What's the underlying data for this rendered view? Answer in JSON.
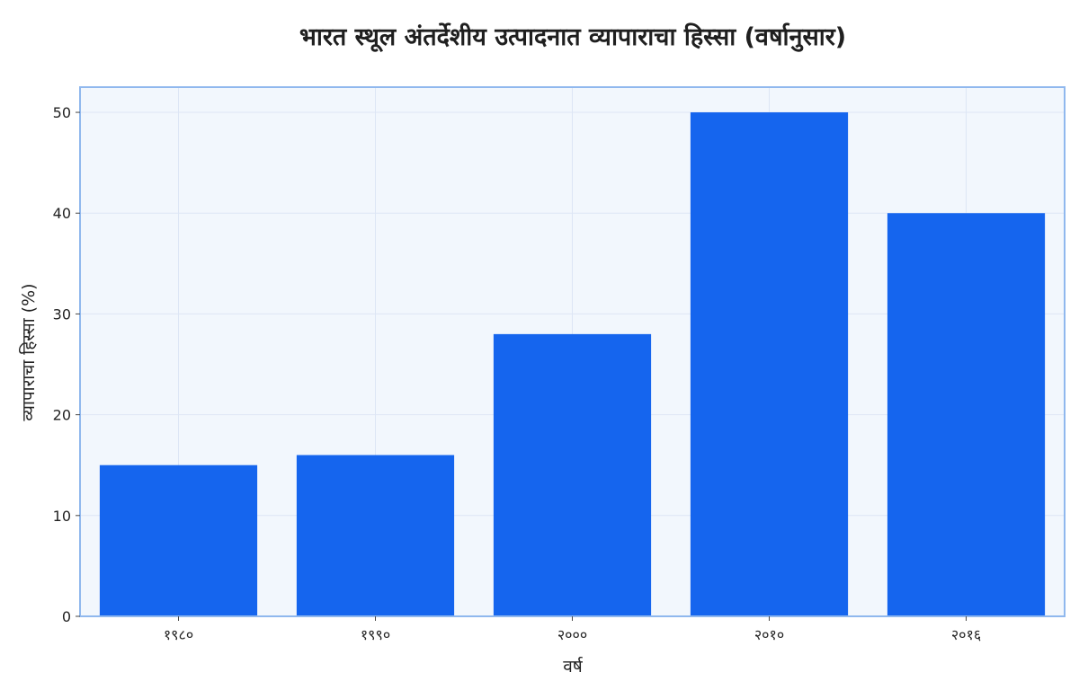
{
  "chart_data": {
    "type": "bar",
    "title": "भारत स्थूल अंतर्देशीय उत्पादनात व्यापाराचा हिस्सा (वर्षानुसार)",
    "xlabel": "वर्ष",
    "ylabel": "व्यापाराचा हिस्सा (%)",
    "categories": [
      "१९८०",
      "१९९०",
      "२०००",
      "२०१०",
      "२०१६"
    ],
    "values": [
      15,
      16,
      28,
      50,
      40
    ],
    "ylim": [
      0,
      52.5
    ],
    "yticks": [
      "0",
      "10",
      "20",
      "30",
      "40",
      "50"
    ],
    "grid": true,
    "legend": "none",
    "colors": {
      "bar": "#1565ee",
      "plot_background": "#f2f7fd",
      "plot_border": "#90b8ee",
      "grid": "#dde6f5"
    }
  }
}
